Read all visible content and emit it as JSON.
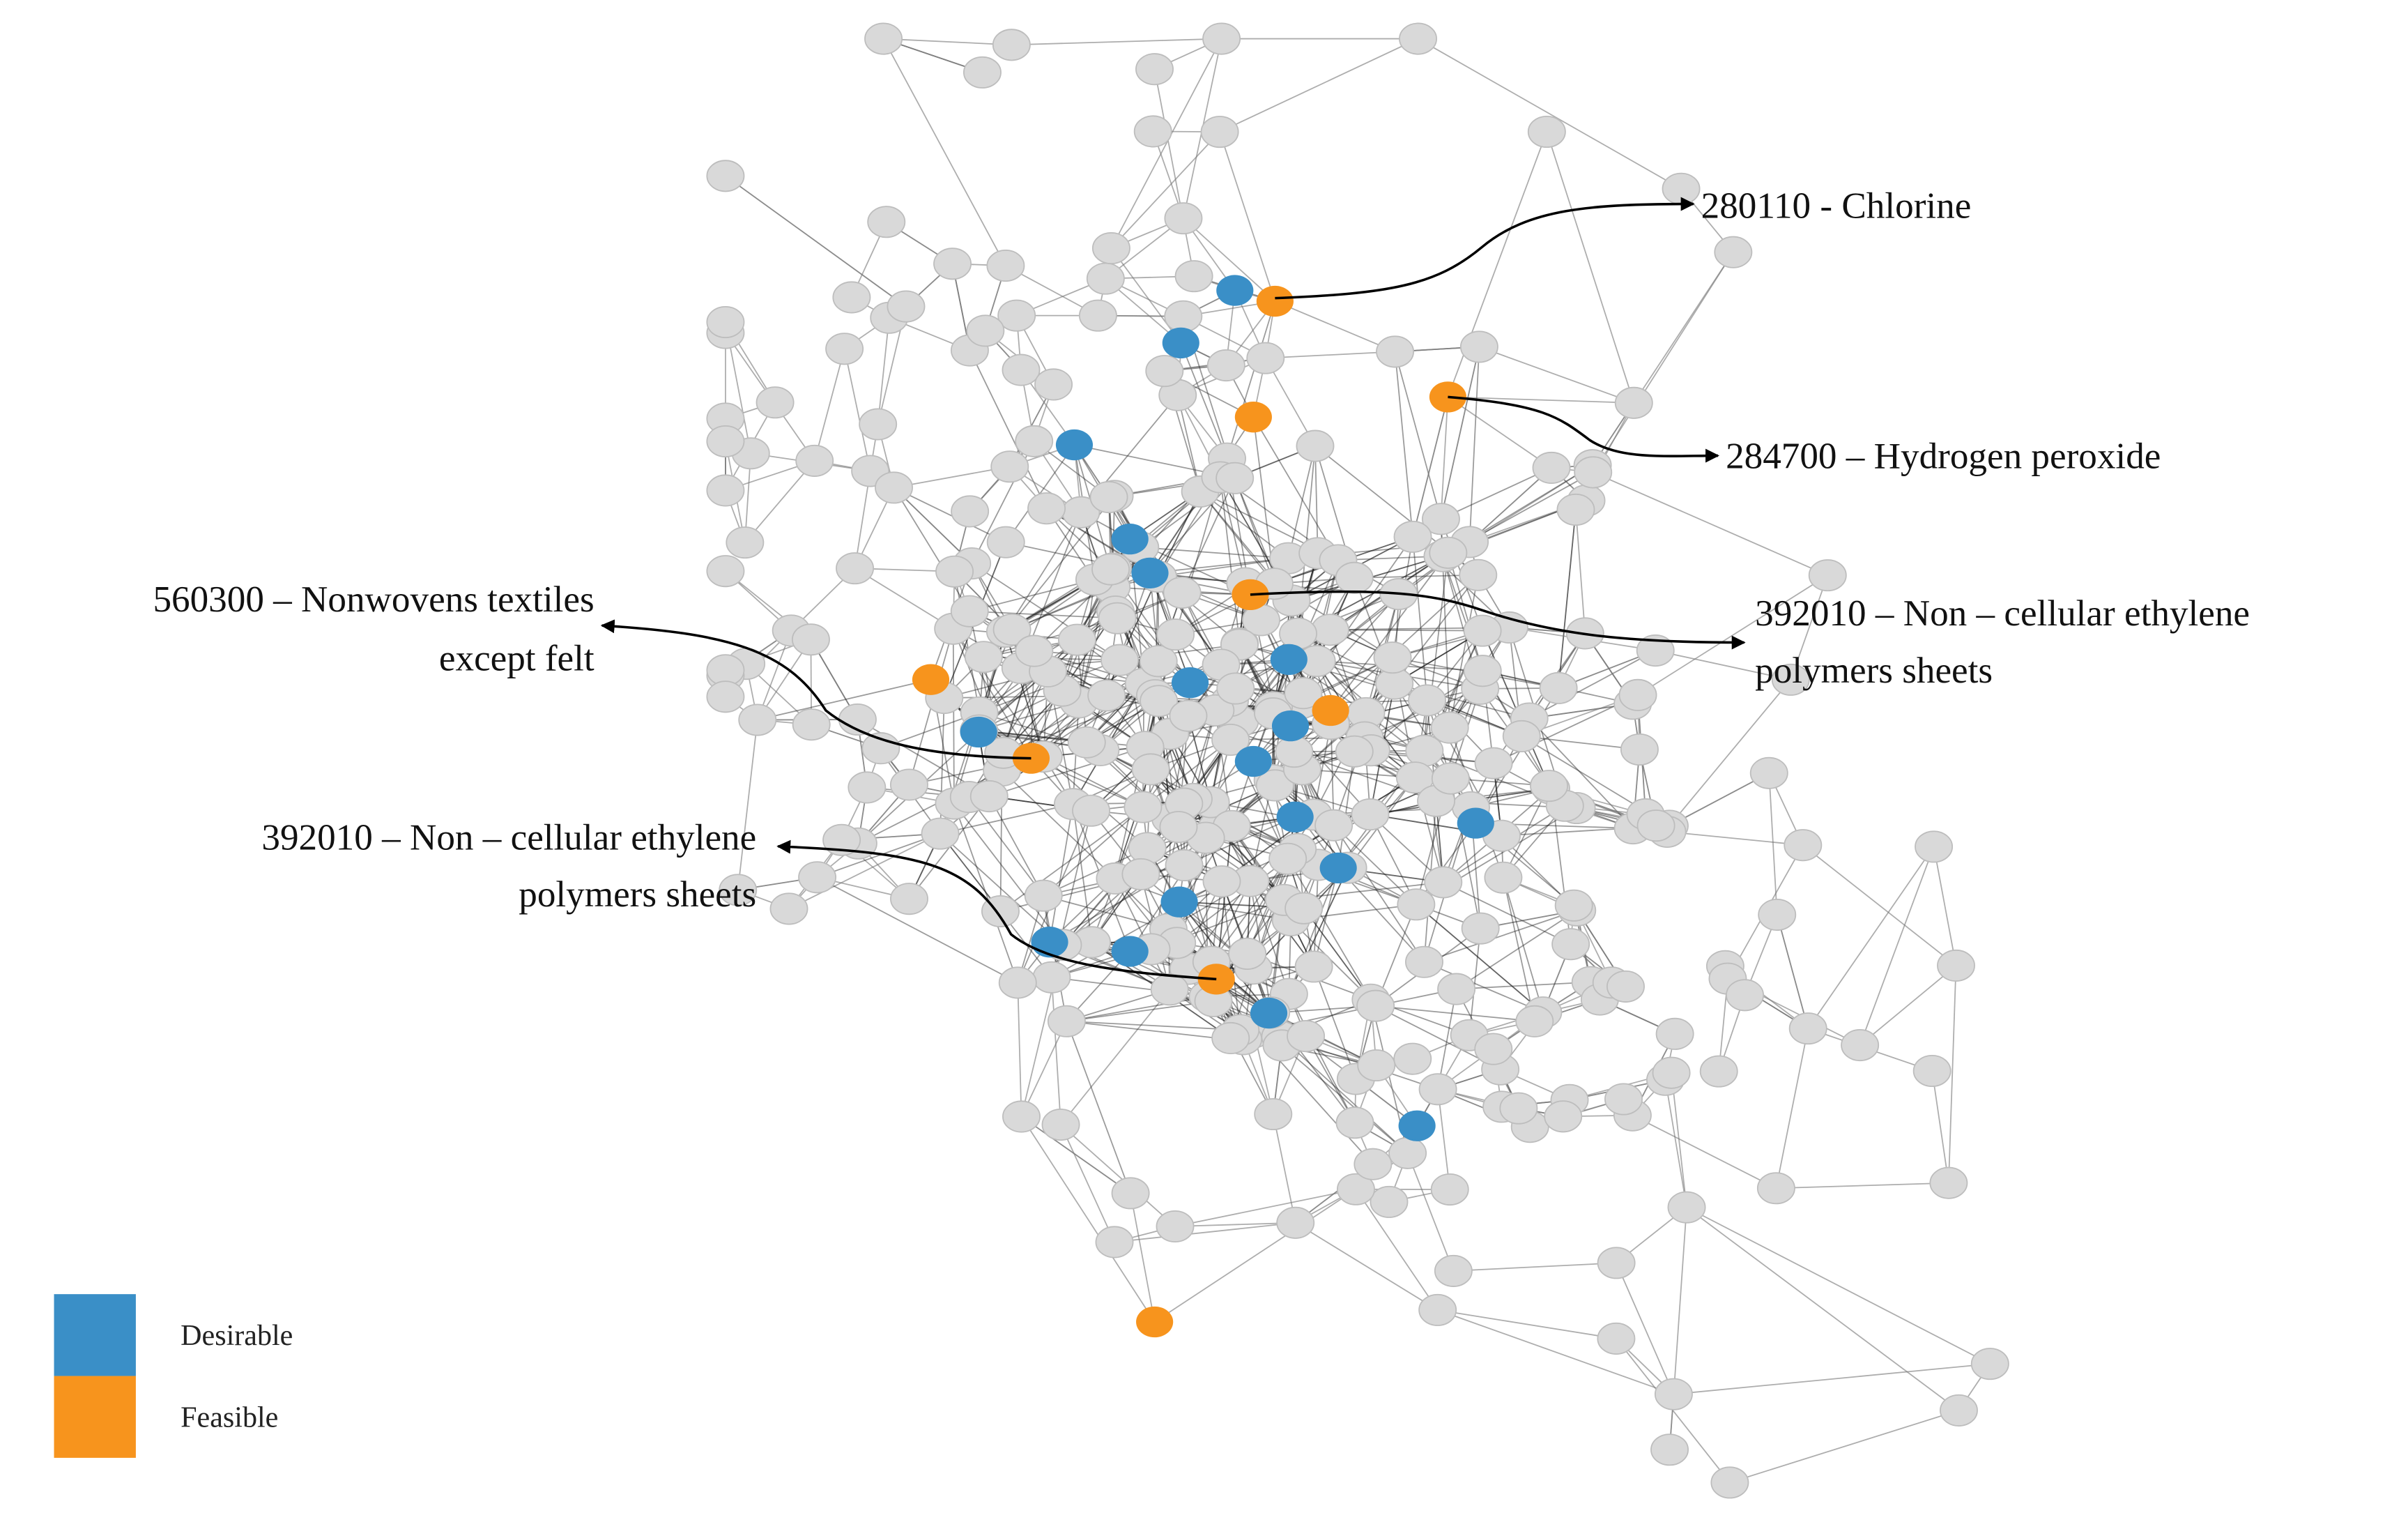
{
  "annotations": [
    {
      "lines": [
        "280110 - Chlorine"
      ]
    },
    {
      "lines": [
        "284700 – Hydrogen peroxide"
      ]
    },
    {
      "lines": [
        "392010 – Non – cellular ethylene",
        "polymers sheets"
      ]
    },
    {
      "lines": [
        "560300 – Nonwovens textiles",
        "except felt"
      ]
    },
    {
      "lines": [
        "392010 – Non – cellular ethylene",
        "polymers sheets"
      ]
    }
  ],
  "legend": [
    {
      "name": "Desirable",
      "color": "#3a8fc7"
    },
    {
      "name": "Feasible",
      "color": "#f7941d"
    }
  ]
}
